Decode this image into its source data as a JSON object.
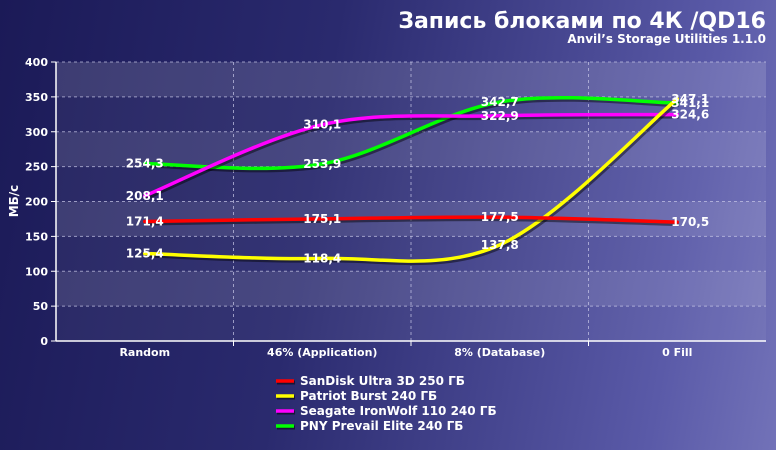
{
  "chart_data": {
    "type": "line",
    "title": "Запись блоками по 4К /QD16",
    "subtitle": "Anvil’s Storage Utilities 1.1.0",
    "ylabel": "МБ/с",
    "xlabel": "",
    "categories": [
      "Random",
      "46% (Application)",
      "8% (Database)",
      "0 Fill"
    ],
    "ylim": [
      0,
      400
    ],
    "yticks": [
      "0",
      "50",
      "100",
      "150",
      "200",
      "250",
      "300",
      "350",
      "400"
    ],
    "grid": true,
    "legend_position": "bottom",
    "series": [
      {
        "name": "SanDisk Ultra 3D 250 ГБ",
        "color": "#ff0000",
        "values": [
          171.4,
          175.1,
          177.5,
          170.5
        ],
        "labels": [
          "171,4",
          "175,1",
          "177,5",
          "170,5"
        ]
      },
      {
        "name": "Patriot Burst 240 ГБ",
        "color": "#ffff00",
        "values": [
          125.4,
          118.4,
          137.8,
          347.1
        ],
        "labels": [
          "125,4",
          "118,4",
          "137,8",
          "347,1"
        ]
      },
      {
        "name": "Seagate IronWolf 110 240 ГБ",
        "color": "#ff00ff",
        "values": [
          208.1,
          310.1,
          322.9,
          324.6
        ],
        "labels": [
          "208,1",
          "310,1",
          "322,9",
          "324,6"
        ]
      },
      {
        "name": "PNY Prevail Elite 240 ГБ",
        "color": "#00ff00",
        "values": [
          254.3,
          253.9,
          342.7,
          341.1
        ],
        "labels": [
          "254,3",
          "253,9",
          "342,7",
          "341,1"
        ]
      }
    ]
  }
}
